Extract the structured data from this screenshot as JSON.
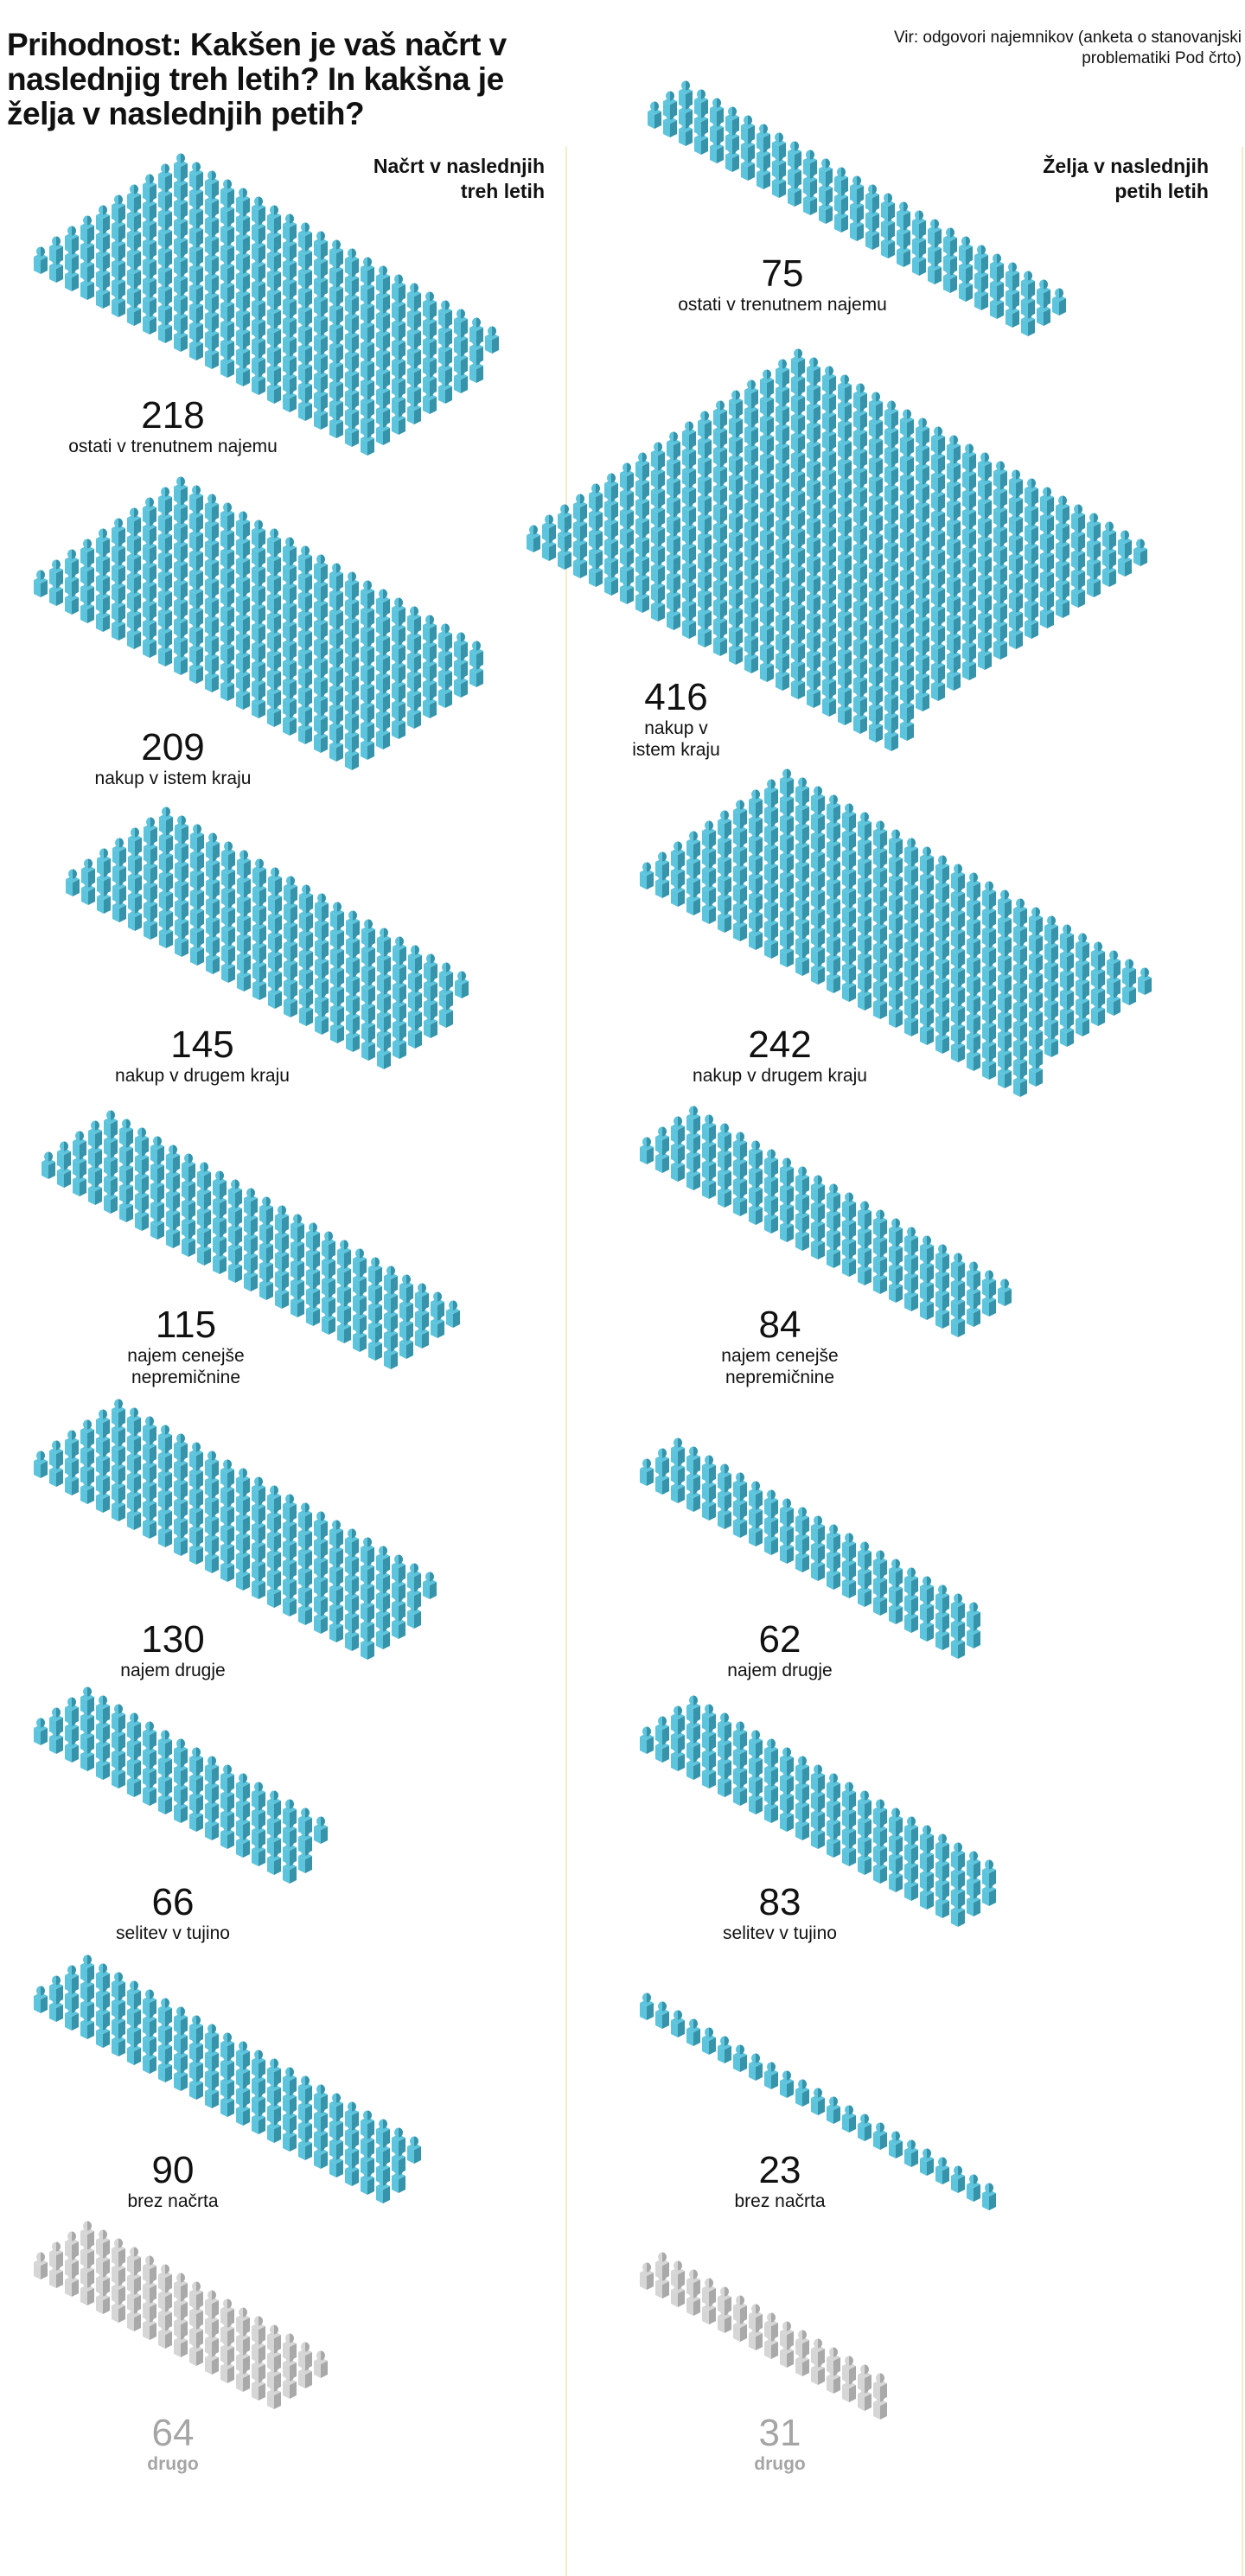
{
  "title": "Prihodnost: Kakšen je vaš načrt v naslednjig treh letih? In kakšna je želja v naslednjih petih?",
  "source": "Vir: odgovori najemnikov (anketa o stanovanjski problematiki Pod črto)",
  "colors": {
    "figure_light": "#5cc4dc",
    "figure_dark": "#3793a9",
    "other_light": "#d6d6d6",
    "other_dark": "#a9a9a9",
    "divider": "#f3ecc9"
  },
  "chart_data": {
    "type": "pictogram",
    "title": "Prihodnost: Kakšen je vaš načrt v naslednjig treh letih? In kakšna je želja v naslednjih petih?",
    "categories": [
      "ostati v trenutnem najemu",
      "nakup v istem kraju",
      "nakup v drugem kraju",
      "najem cenejše nepremičnine",
      "najem drugje",
      "selitev v tujino",
      "brez načrta",
      "drugo"
    ],
    "series": [
      {
        "name": "Načrt v naslednjih treh letih",
        "values": [
          218,
          209,
          145,
          115,
          130,
          66,
          90,
          64
        ]
      },
      {
        "name": "Želja v naslednjih petih letih",
        "values": [
          75,
          416,
          242,
          84,
          62,
          83,
          23,
          31
        ]
      }
    ]
  },
  "left": {
    "header": "Načrt v naslednjih treh letih",
    "groups": [
      {
        "value": "218",
        "label": "ostati v trenutnem najemu"
      },
      {
        "value": "209",
        "label": "nakup v istem kraju"
      },
      {
        "value": "145",
        "label": "nakup v drugem kraju"
      },
      {
        "value": "115",
        "label": "najem cenejše nepremičnine"
      },
      {
        "value": "130",
        "label": "najem drugje"
      },
      {
        "value": "66",
        "label": "selitev v tujino"
      },
      {
        "value": "90",
        "label": "brez načrta"
      },
      {
        "value": "64",
        "label": "drugo"
      }
    ]
  },
  "right": {
    "header": "Želja v naslednjih petih letih",
    "groups": [
      {
        "value": "75",
        "label": "ostati v trenutnem najemu"
      },
      {
        "value": "416",
        "label": "nakup v istem kraju"
      },
      {
        "value": "242",
        "label": "nakup v drugem kraju"
      },
      {
        "value": "84",
        "label": "najem cenejše nepremičnine"
      },
      {
        "value": "62",
        "label": "najem drugje"
      },
      {
        "value": "83",
        "label": "selitev v tujino"
      },
      {
        "value": "23",
        "label": "brez načrta"
      },
      {
        "value": "31",
        "label": "drugo"
      }
    ]
  }
}
